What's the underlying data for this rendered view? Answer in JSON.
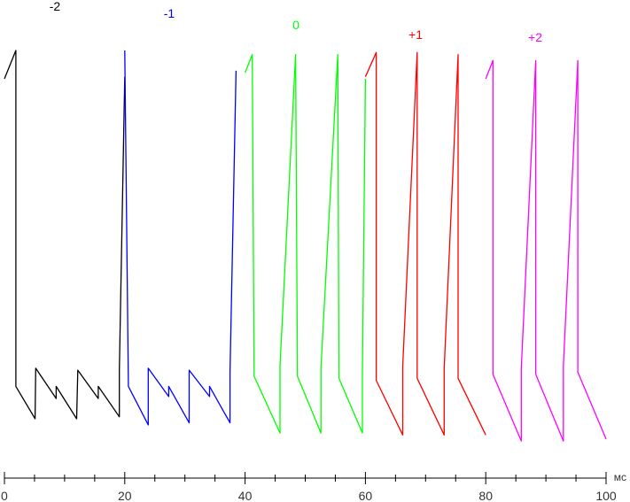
{
  "chart_data": {
    "type": "line",
    "x_unit": "мс",
    "xlim": [
      0,
      100
    ],
    "x_ticks": [
      0,
      20,
      40,
      60,
      80,
      100
    ],
    "x_tick_labels": [
      "0",
      "20",
      "40",
      "60",
      "80",
      "100"
    ],
    "y_axis_shown": false,
    "grid": false,
    "legend": "none",
    "series": [
      {
        "name": "-2",
        "color": "#000000",
        "points": [
          [
            0.0,
            -72
          ],
          [
            1.9,
            -86
          ],
          [
            1.9,
            80
          ],
          [
            5.1,
            96
          ],
          [
            5.1,
            96
          ],
          [
            5.2,
            71
          ],
          [
            8.6,
            86
          ],
          [
            8.6,
            80
          ],
          [
            12.0,
            96
          ],
          [
            12.2,
            72
          ],
          [
            15.6,
            86
          ],
          [
            15.6,
            80
          ],
          [
            19.1,
            95
          ],
          [
            19.1,
            72
          ],
          [
            20.0,
            -73
          ]
        ]
      },
      {
        "name": "-1",
        "color": "#0000ff",
        "points": [
          [
            20.0,
            -86
          ],
          [
            20.6,
            80
          ],
          [
            23.9,
            99
          ],
          [
            23.9,
            71
          ],
          [
            27.3,
            85
          ],
          [
            27.3,
            80
          ],
          [
            30.7,
            98
          ],
          [
            30.7,
            72
          ],
          [
            34.1,
            85
          ],
          [
            34.1,
            80
          ],
          [
            37.5,
            98
          ],
          [
            37.5,
            73
          ],
          [
            38.5,
            -76
          ]
        ]
      },
      {
        "name": "0",
        "color": "#00ff00",
        "points": [
          [
            40.0,
            -75
          ],
          [
            41.2,
            -84
          ],
          [
            41.5,
            75
          ],
          [
            45.8,
            103
          ],
          [
            45.8,
            70
          ],
          [
            48.4,
            -84
          ],
          [
            48.7,
            75
          ],
          [
            52.6,
            103
          ],
          [
            52.6,
            71
          ],
          [
            55.4,
            -84
          ],
          [
            55.6,
            76
          ],
          [
            59.5,
            103
          ],
          [
            59.5,
            73
          ],
          [
            60.0,
            -72
          ]
        ]
      },
      {
        "name": "+1",
        "color": "#ff0000",
        "points": [
          [
            60.0,
            -73
          ],
          [
            61.8,
            -85
          ],
          [
            61.8,
            77
          ],
          [
            66.2,
            104
          ],
          [
            66.2,
            70
          ],
          [
            68.6,
            -85
          ],
          [
            68.6,
            76
          ],
          [
            73.1,
            104
          ],
          [
            73.1,
            71
          ],
          [
            75.4,
            -84
          ],
          [
            75.4,
            76
          ],
          [
            80.0,
            104
          ]
        ]
      },
      {
        "name": "+2",
        "color": "#ff00ff",
        "points": [
          [
            80.0,
            -72
          ],
          [
            81.2,
            -81
          ],
          [
            81.2,
            74
          ],
          [
            85.9,
            107
          ],
          [
            85.9,
            71
          ],
          [
            88.3,
            -81
          ],
          [
            88.3,
            74
          ],
          [
            92.9,
            107
          ],
          [
            92.9,
            70
          ],
          [
            95.3,
            -81
          ],
          [
            95.3,
            73
          ],
          [
            100.0,
            106
          ]
        ]
      }
    ],
    "series_labels": [
      "-2",
      "-1",
      "0",
      "+1",
      "+2"
    ]
  }
}
